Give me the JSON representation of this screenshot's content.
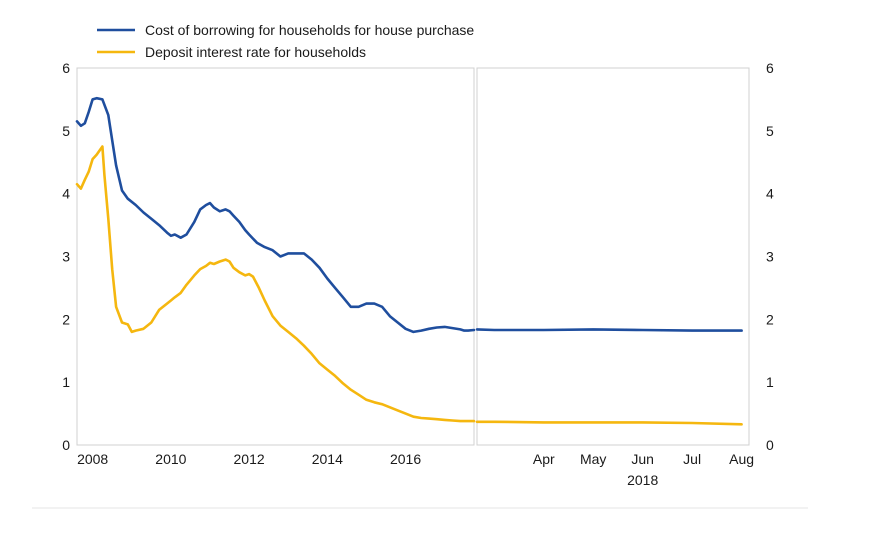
{
  "chart_data": {
    "type": "line",
    "legend_position": "top-left",
    "grid": false,
    "ylim": [
      0,
      6
    ],
    "y_ticks_left": [
      "0",
      "1",
      "2",
      "3",
      "4",
      "5",
      "6"
    ],
    "y_ticks_right": [
      "0",
      "1",
      "2",
      "3",
      "4",
      "5",
      "6"
    ],
    "panels": [
      {
        "id": "long-run",
        "x_unit": "year",
        "xlim": [
          2007.6,
          2017.75
        ],
        "x_ticks": [
          "2008",
          "2010",
          "2012",
          "2014",
          "2016"
        ],
        "series": [
          {
            "name": "Cost of borrowing for households for house purchase",
            "x": [
              2007.6,
              2007.7,
              2007.8,
              2007.9,
              2008.0,
              2008.1,
              2008.25,
              2008.4,
              2008.5,
              2008.6,
              2008.75,
              2008.9,
              2009.1,
              2009.3,
              2009.5,
              2009.7,
              2009.9,
              2010.0,
              2010.1,
              2010.25,
              2010.4,
              2010.6,
              2010.75,
              2010.9,
              2011.0,
              2011.1,
              2011.25,
              2011.4,
              2011.5,
              2011.6,
              2011.75,
              2011.9,
              2012.0,
              2012.2,
              2012.4,
              2012.6,
              2012.8,
              2013.0,
              2013.2,
              2013.4,
              2013.6,
              2013.8,
              2014.0,
              2014.2,
              2014.4,
              2014.6,
              2014.8,
              2015.0,
              2015.2,
              2015.4,
              2015.6,
              2015.8,
              2016.0,
              2016.2,
              2016.4,
              2016.6,
              2016.8,
              2017.0,
              2017.2,
              2017.4,
              2017.5,
              2017.6,
              2017.75
            ],
            "values": [
              5.15,
              5.08,
              5.12,
              5.3,
              5.5,
              5.52,
              5.5,
              5.25,
              4.85,
              4.45,
              4.05,
              3.92,
              3.82,
              3.7,
              3.6,
              3.5,
              3.38,
              3.33,
              3.35,
              3.3,
              3.35,
              3.55,
              3.75,
              3.82,
              3.85,
              3.78,
              3.72,
              3.75,
              3.72,
              3.65,
              3.55,
              3.42,
              3.35,
              3.22,
              3.15,
              3.1,
              3.0,
              3.05,
              3.05,
              3.05,
              2.95,
              2.82,
              2.65,
              2.5,
              2.35,
              2.2,
              2.2,
              2.25,
              2.25,
              2.2,
              2.05,
              1.95,
              1.85,
              1.8,
              1.82,
              1.85,
              1.87,
              1.88,
              1.86,
              1.84,
              1.82,
              1.82,
              1.83
            ],
            "color": "#1f4e9e"
          },
          {
            "name": "Deposit interest rate for households",
            "x": [
              2007.6,
              2007.7,
              2007.8,
              2007.9,
              2008.0,
              2008.1,
              2008.25,
              2008.3,
              2008.4,
              2008.5,
              2008.6,
              2008.75,
              2008.9,
              2009.0,
              2009.1,
              2009.3,
              2009.5,
              2009.7,
              2009.9,
              2010.0,
              2010.1,
              2010.25,
              2010.4,
              2010.6,
              2010.75,
              2010.9,
              2011.0,
              2011.1,
              2011.25,
              2011.4,
              2011.5,
              2011.6,
              2011.75,
              2011.9,
              2012.0,
              2012.1,
              2012.25,
              2012.4,
              2012.6,
              2012.8,
              2013.0,
              2013.2,
              2013.4,
              2013.6,
              2013.8,
              2014.0,
              2014.2,
              2014.4,
              2014.6,
              2014.8,
              2015.0,
              2015.2,
              2015.4,
              2015.6,
              2015.8,
              2016.0,
              2016.2,
              2016.4,
              2016.6,
              2016.8,
              2017.0,
              2017.2,
              2017.4,
              2017.6,
              2017.75
            ],
            "values": [
              4.15,
              4.08,
              4.22,
              4.35,
              4.55,
              4.62,
              4.75,
              4.3,
              3.6,
              2.8,
              2.2,
              1.95,
              1.92,
              1.8,
              1.82,
              1.85,
              1.95,
              2.15,
              2.25,
              2.3,
              2.35,
              2.42,
              2.55,
              2.7,
              2.8,
              2.85,
              2.9,
              2.88,
              2.92,
              2.95,
              2.92,
              2.82,
              2.75,
              2.7,
              2.72,
              2.68,
              2.5,
              2.3,
              2.05,
              1.9,
              1.8,
              1.7,
              1.58,
              1.45,
              1.3,
              1.2,
              1.1,
              0.98,
              0.88,
              0.8,
              0.72,
              0.68,
              0.65,
              0.6,
              0.55,
              0.5,
              0.45,
              0.43,
              0.42,
              0.41,
              0.4,
              0.39,
              0.38,
              0.38,
              0.38
            ],
            "color": "#f5b70f"
          }
        ]
      },
      {
        "id": "recent-months",
        "x_unit": "month index (0 = Mar 2018)",
        "xlim": [
          -0.35,
          5.15
        ],
        "x_ticks": [
          "Apr",
          "May",
          "Jun",
          "Jul",
          "Aug"
        ],
        "x_ticks_at": [
          1,
          2,
          3,
          4,
          5
        ],
        "x_sublabel": "2018",
        "series": [
          {
            "name": "Cost of borrowing for households for house purchase",
            "x": [
              -0.35,
              0,
              1,
              2,
              3,
              4,
              5
            ],
            "values": [
              1.84,
              1.83,
              1.83,
              1.84,
              1.83,
              1.82,
              1.82
            ],
            "color": "#1f4e9e"
          },
          {
            "name": "Deposit interest rate for households",
            "x": [
              -0.35,
              0,
              1,
              2,
              3,
              4,
              5
            ],
            "values": [
              0.37,
              0.37,
              0.36,
              0.36,
              0.36,
              0.35,
              0.33
            ],
            "color": "#f5b70f"
          }
        ]
      }
    ]
  }
}
